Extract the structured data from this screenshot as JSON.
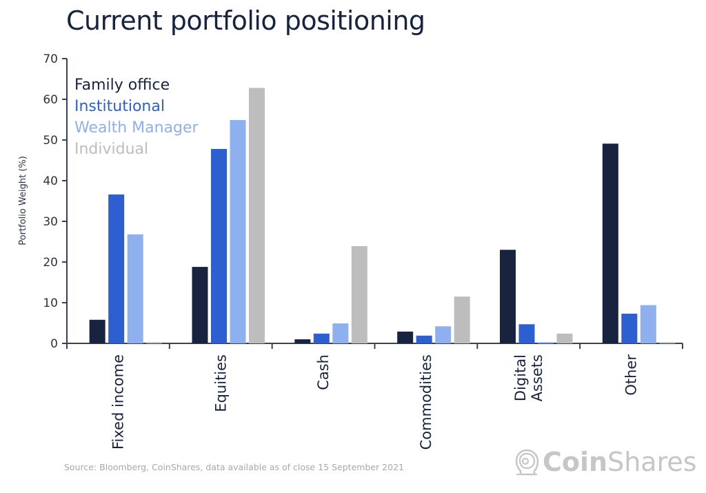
{
  "page": {
    "source": "Source: Bloomberg, CoinShares, data available as of close 15 September 2021",
    "logo": {
      "bold": "Coin",
      "light": "Shares",
      "icon": "astronaut-helmet-icon"
    }
  },
  "chart_data": {
    "type": "bar",
    "title": "Current portfolio positioning",
    "xlabel": "",
    "ylabel": "Portfolio Weight (%)",
    "ylim": [
      0,
      70
    ],
    "yticks": [
      0,
      10,
      20,
      30,
      40,
      50,
      60,
      70
    ],
    "grid": false,
    "legend_position": "top-left",
    "categories": [
      "Fixed income",
      "Equities",
      "Cash",
      "Commodities",
      "Digital Assets",
      "Other"
    ],
    "category_label_lines": [
      [
        "Fixed income"
      ],
      [
        "Equities"
      ],
      [
        "Cash"
      ],
      [
        "Commodities"
      ],
      [
        "Digital",
        "Assets"
      ],
      [
        "Other"
      ]
    ],
    "highlighted_category": "Digital Assets",
    "series": [
      {
        "name": "Family office",
        "color": "#17233f",
        "values": [
          5.8,
          18.8,
          1.0,
          2.9,
          23.0,
          49.1
        ]
      },
      {
        "name": "Institutional",
        "color": "#2e5fd0",
        "values": [
          36.6,
          47.8,
          2.4,
          1.9,
          4.7,
          7.3
        ]
      },
      {
        "name": "Wealth Manager",
        "color": "#8fb0ee",
        "values": [
          26.8,
          54.9,
          4.9,
          4.2,
          0.3,
          9.4
        ]
      },
      {
        "name": "Individual",
        "color": "#bdbdbd",
        "values": [
          0.3,
          62.8,
          23.9,
          11.5,
          2.4,
          0.3
        ]
      }
    ],
    "highlight_color": "#2e5fd0",
    "axis_color": "#3a4252"
  }
}
